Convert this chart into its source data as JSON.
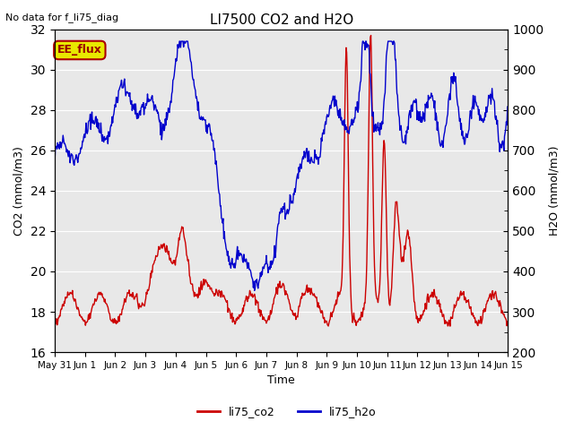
{
  "title": "LI7500 CO2 and H2O",
  "top_left_text": "No data for f_li75_diag",
  "xlabel": "Time",
  "ylabel_left": "CO2 (mmol/m3)",
  "ylabel_right": "H2O (mmol/m3)",
  "ylim_left": [
    16,
    32
  ],
  "ylim_right": [
    200,
    1000
  ],
  "yticks_left": [
    16,
    18,
    20,
    22,
    24,
    26,
    28,
    30,
    32
  ],
  "yticks_right": [
    200,
    300,
    400,
    500,
    600,
    700,
    800,
    900,
    1000
  ],
  "xtick_labels": [
    "May 31",
    "Jun 1",
    "Jun 2",
    "Jun 3",
    "Jun 4",
    "Jun 5",
    "Jun 6",
    "Jun 7",
    "Jun 8",
    "Jun 9",
    "Jun 10",
    "Jun 11",
    "Jun 12",
    "Jun 13",
    "Jun 14",
    "Jun 15"
  ],
  "co2_color": "#cc0000",
  "h2o_color": "#0000cc",
  "legend_labels": [
    "li75_co2",
    "li75_h2o"
  ],
  "ee_flux_box_facecolor": "#e8e800",
  "ee_flux_box_edgecolor": "#aa0000",
  "ee_flux_text": "EE_flux",
  "ee_flux_text_color": "#990000",
  "background_color": "#e8e8e8",
  "grid_color": "white",
  "linewidth": 1.0,
  "fig_width": 6.4,
  "fig_height": 4.8,
  "dpi": 100
}
